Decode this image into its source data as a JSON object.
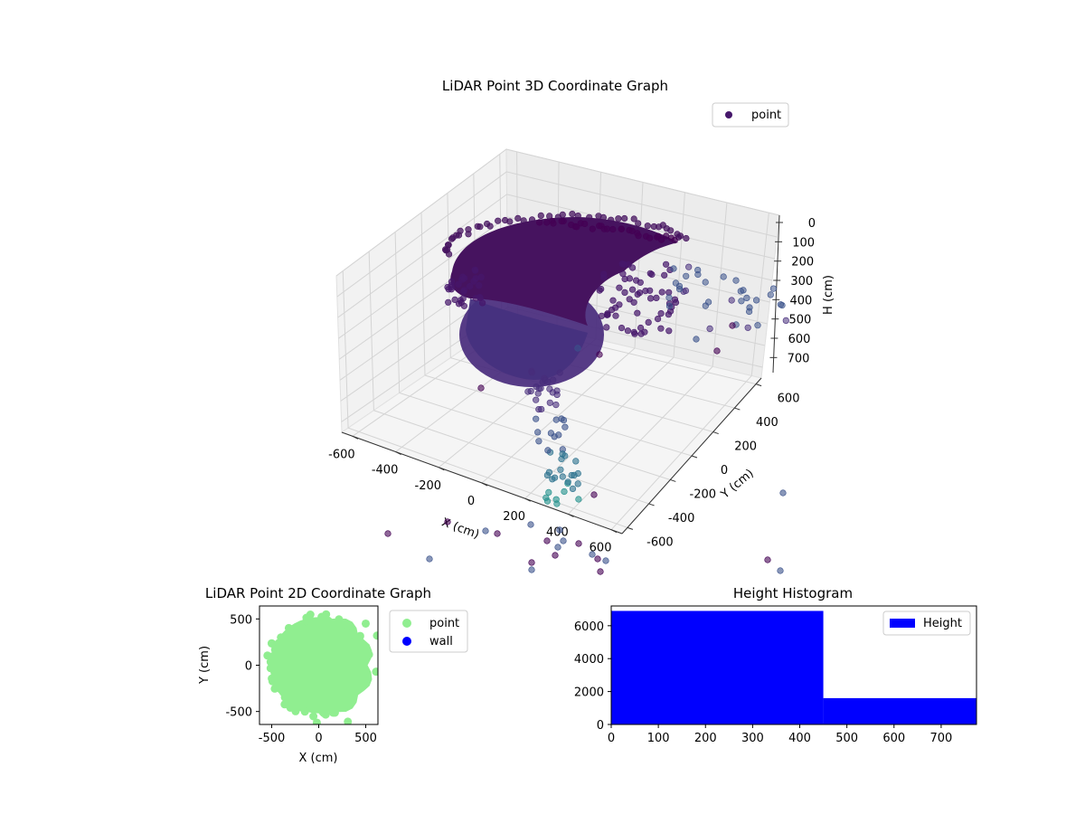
{
  "chart_data": [
    {
      "type": "scatter",
      "title": "LiDAR Point 3D Coordinate Graph",
      "xlabel": "X (cm)",
      "ylabel": "Y (cm)",
      "zlabel": "H (cm)",
      "xlim": [
        -650,
        650
      ],
      "ylim": [
        -650,
        650
      ],
      "zlim": [
        0,
        750
      ],
      "z_inverted": true,
      "xticks": [
        -600,
        -400,
        -200,
        0,
        200,
        400,
        600
      ],
      "yticks": [
        -600,
        -400,
        -200,
        0,
        200,
        400,
        600
      ],
      "zticks": [
        0,
        100,
        200,
        300,
        400,
        500,
        600,
        700
      ],
      "legend": [
        "point"
      ],
      "legend_loc": "upper right",
      "colormap": "viridis (dark purple to teal)",
      "marker_color": "#46176b",
      "grid": true,
      "series": [
        {
          "name": "point",
          "description": "Dense cloud; bulk of points within radius ~550 cm at heights 0–450 cm, sparse outliers at greater heights (up to ~750 cm)",
          "sample_points": [
            {
              "x": -500,
              "y": 300,
              "z": 80
            },
            {
              "x": -300,
              "y": 500,
              "z": 60
            },
            {
              "x": 0,
              "y": 550,
              "z": 50
            },
            {
              "x": 300,
              "y": 500,
              "z": 70
            },
            {
              "x": 500,
              "y": 300,
              "z": 90
            },
            {
              "x": -450,
              "y": 0,
              "z": 250
            },
            {
              "x": -300,
              "y": -300,
              "z": 350
            },
            {
              "x": 0,
              "y": -400,
              "z": 400
            },
            {
              "x": 200,
              "y": 0,
              "z": 300
            },
            {
              "x": 450,
              "y": 150,
              "z": 200
            },
            {
              "x": 550,
              "y": 350,
              "z": 120
            },
            {
              "x": 100,
              "y": -150,
              "z": 520
            },
            {
              "x": 150,
              "y": -250,
              "z": 600
            },
            {
              "x": 250,
              "y": -350,
              "z": 680
            },
            {
              "x": 600,
              "y": 500,
              "z": 300
            },
            {
              "x": 620,
              "y": -200,
              "z": 740
            }
          ]
        }
      ]
    },
    {
      "type": "scatter",
      "title": "LiDAR Point 2D Coordinate Graph",
      "xlabel": "X (cm)",
      "ylabel": "Y (cm)",
      "xlim": [
        -630,
        630
      ],
      "ylim": [
        -640,
        640
      ],
      "xticks": [
        -500,
        0,
        500
      ],
      "yticks": [
        -500,
        0,
        500
      ],
      "legend": [
        "point",
        "wall"
      ],
      "legend_loc": "outside right",
      "series": [
        {
          "name": "point",
          "color": "#90ee90",
          "description": "Filled roughly circular region centered near (0, 0) with radius ~520 cm, ragged lobes toward +X",
          "outliers": [
            {
              "x": 500,
              "y": 450
            },
            {
              "x": 620,
              "y": 320
            },
            {
              "x": 610,
              "y": -70
            },
            {
              "x": 310,
              "y": -610
            },
            {
              "x": -20,
              "y": -620
            }
          ]
        },
        {
          "name": "wall",
          "color": "#0000ff",
          "points": []
        }
      ]
    },
    {
      "type": "bar",
      "title": "Height Histogram",
      "xlabel": "",
      "ylabel": "",
      "xlim": [
        0,
        775
      ],
      "ylim": [
        0,
        7200
      ],
      "xticks": [
        0,
        100,
        200,
        300,
        400,
        500,
        600,
        700
      ],
      "yticks": [
        0,
        2000,
        4000,
        6000
      ],
      "legend": [
        "Height"
      ],
      "legend_loc": "upper right",
      "color": "#0000ff",
      "bins": [
        {
          "start": 0,
          "end": 450,
          "count": 6900
        },
        {
          "start": 450,
          "end": 775,
          "count": 1600
        }
      ]
    }
  ]
}
